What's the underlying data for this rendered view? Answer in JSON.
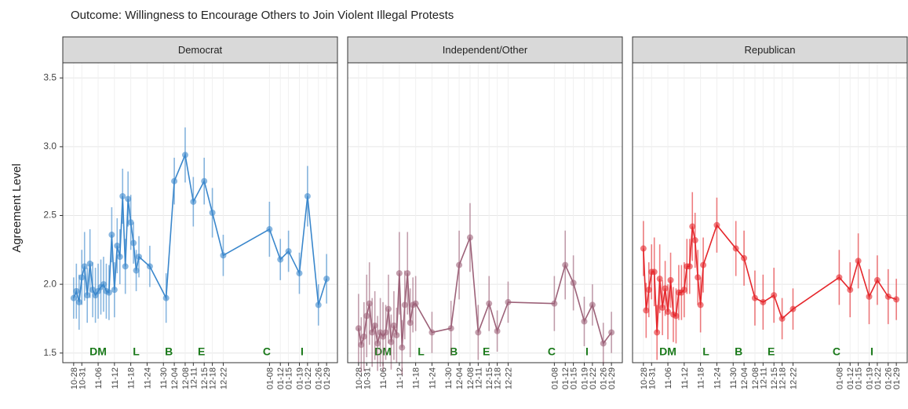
{
  "title": "Outcome: Willingness to Encourage Others to Join Violent Illegal Protests",
  "ylabel": "Agreement Level",
  "chart_data": [
    {
      "type": "line",
      "title": "Democrat",
      "color": "#3a87cc",
      "xlim": [
        "10-24",
        "02-02"
      ],
      "ylim": [
        1.43,
        3.61
      ],
      "yticks": [
        {
          "value": 1.5,
          "label": "1.5"
        },
        {
          "value": 2,
          "label": "2.0"
        },
        {
          "value": 2.5,
          "label": "2.5"
        },
        {
          "value": 3,
          "label": "3.0"
        },
        {
          "value": 3.5,
          "label": "3.5"
        }
      ],
      "xticks": [
        "10-28",
        "10-31",
        "11-06",
        "11-12",
        "11-18",
        "11-24",
        "11-30",
        "12-04",
        "12-08",
        "12-11",
        "12-15",
        "12-18",
        "12-22",
        "01-08",
        "01-12",
        "01-15",
        "01-19",
        "01-22",
        "01-26",
        "01-29"
      ],
      "grid": true,
      "annotations": [
        {
          "x": "11-06",
          "label": "DM"
        },
        {
          "x": "11-20",
          "label": "L"
        },
        {
          "x": "12-02",
          "label": "B"
        },
        {
          "x": "12-14",
          "label": "E"
        },
        {
          "x": "01-07",
          "label": "C"
        },
        {
          "x": "01-20",
          "label": "I"
        }
      ],
      "x": [
        "10-28",
        "10-29",
        "10-30",
        "10-31",
        "11-01",
        "11-02",
        "11-03",
        "11-04",
        "11-05",
        "11-06",
        "11-07",
        "11-08",
        "11-09",
        "11-10",
        "11-11",
        "11-12",
        "11-13",
        "11-14",
        "11-15",
        "11-16",
        "11-17",
        "11-18",
        "11-19",
        "11-20",
        "11-21",
        "11-25",
        "12-01",
        "12-04",
        "12-08",
        "12-11",
        "12-15",
        "12-18",
        "12-22",
        "01-08",
        "01-12",
        "01-15",
        "01-19",
        "01-22",
        "01-26",
        "01-29"
      ],
      "values": [
        1.9,
        1.95,
        1.87,
        2.05,
        2.13,
        1.92,
        2.15,
        1.96,
        1.92,
        1.95,
        1.98,
        2.0,
        1.95,
        1.94,
        2.36,
        1.96,
        2.28,
        2.2,
        2.64,
        2.13,
        2.62,
        2.45,
        2.3,
        2.1,
        2.2,
        2.13,
        1.9,
        2.75,
        2.94,
        2.6,
        2.75,
        2.52,
        2.21,
        2.4,
        2.18,
        2.24,
        2.08,
        2.64,
        1.85,
        2.04
      ],
      "errors": [
        0.15,
        0.2,
        0.2,
        0.2,
        0.25,
        0.2,
        0.25,
        0.2,
        0.2,
        0.2,
        0.2,
        0.2,
        0.2,
        0.2,
        0.2,
        0.2,
        0.2,
        0.2,
        0.2,
        0.2,
        0.2,
        0.2,
        0.15,
        0.15,
        0.15,
        0.15,
        0.18,
        0.17,
        0.2,
        0.18,
        0.17,
        0.18,
        0.15,
        0.2,
        0.15,
        0.15,
        0.15,
        0.22,
        0.15,
        0.18
      ]
    },
    {
      "type": "line",
      "title": "Independent/Other",
      "color": "#9c6178",
      "xlim": [
        "10-24",
        "02-02"
      ],
      "ylim": [
        1.43,
        3.61
      ],
      "yticks": [
        {
          "value": 1.5,
          "label": "1.5"
        },
        {
          "value": 2,
          "label": "2.0"
        },
        {
          "value": 2.5,
          "label": "2.5"
        },
        {
          "value": 3,
          "label": "3.0"
        },
        {
          "value": 3.5,
          "label": "3.5"
        }
      ],
      "xticks": [
        "10-28",
        "10-31",
        "11-06",
        "11-12",
        "11-18",
        "11-24",
        "11-30",
        "12-04",
        "12-08",
        "12-11",
        "12-15",
        "12-18",
        "12-22",
        "01-08",
        "01-12",
        "01-15",
        "01-19",
        "01-22",
        "01-26",
        "01-29"
      ],
      "grid": true,
      "annotations": [
        {
          "x": "11-06",
          "label": "DM"
        },
        {
          "x": "11-20",
          "label": "L"
        },
        {
          "x": "12-02",
          "label": "B"
        },
        {
          "x": "12-14",
          "label": "E"
        },
        {
          "x": "01-07",
          "label": "C"
        },
        {
          "x": "01-20",
          "label": "I"
        }
      ],
      "x": [
        "10-28",
        "10-29",
        "10-30",
        "10-31",
        "11-01",
        "11-02",
        "11-03",
        "11-04",
        "11-05",
        "11-06",
        "11-07",
        "11-08",
        "11-09",
        "11-10",
        "11-11",
        "11-12",
        "11-13",
        "11-14",
        "11-15",
        "11-16",
        "11-17",
        "11-18",
        "11-24",
        "12-01",
        "12-04",
        "12-08",
        "12-11",
        "12-15",
        "12-18",
        "12-22",
        "01-08",
        "01-12",
        "01-15",
        "01-19",
        "01-22",
        "01-26",
        "01-29"
      ],
      "values": [
        1.68,
        1.56,
        1.62,
        1.77,
        1.86,
        1.65,
        1.7,
        1.57,
        1.65,
        1.62,
        1.65,
        1.82,
        1.58,
        1.7,
        1.63,
        2.08,
        1.54,
        1.85,
        2.08,
        1.72,
        1.85,
        1.86,
        1.65,
        1.68,
        2.14,
        2.34,
        1.65,
        1.86,
        1.66,
        1.87,
        1.86,
        2.14,
        2.01,
        1.73,
        1.85,
        1.57,
        1.65
      ],
      "errors": [
        0.25,
        0.2,
        0.25,
        0.3,
        0.3,
        0.25,
        0.25,
        0.2,
        0.25,
        0.25,
        0.2,
        0.25,
        0.2,
        0.25,
        0.2,
        0.3,
        0.2,
        0.25,
        0.3,
        0.25,
        0.2,
        0.2,
        0.15,
        0.2,
        0.25,
        0.25,
        0.2,
        0.2,
        0.15,
        0.15,
        0.2,
        0.25,
        0.2,
        0.18,
        0.15,
        0.15,
        0.15
      ]
    },
    {
      "type": "line",
      "title": "Republican",
      "color": "#e5262b",
      "xlim": [
        "10-24",
        "02-02"
      ],
      "ylim": [
        1.43,
        3.61
      ],
      "yticks": [
        {
          "value": 1.5,
          "label": "1.5"
        },
        {
          "value": 2,
          "label": "2.0"
        },
        {
          "value": 2.5,
          "label": "2.5"
        },
        {
          "value": 3,
          "label": "3.0"
        },
        {
          "value": 3.5,
          "label": "3.5"
        }
      ],
      "xticks": [
        "10-28",
        "10-31",
        "11-06",
        "11-12",
        "11-18",
        "11-24",
        "11-30",
        "12-04",
        "12-08",
        "12-11",
        "12-15",
        "12-18",
        "12-22",
        "01-08",
        "01-12",
        "01-15",
        "01-19",
        "01-22",
        "01-26",
        "01-29"
      ],
      "grid": true,
      "annotations": [
        {
          "x": "11-06",
          "label": "DM"
        },
        {
          "x": "11-20",
          "label": "L"
        },
        {
          "x": "12-02",
          "label": "B"
        },
        {
          "x": "12-14",
          "label": "E"
        },
        {
          "x": "01-07",
          "label": "C"
        },
        {
          "x": "01-20",
          "label": "I"
        }
      ],
      "x": [
        "10-28",
        "10-29",
        "10-30",
        "10-31",
        "11-01",
        "11-02",
        "11-03",
        "11-04",
        "11-05",
        "11-06",
        "11-07",
        "11-08",
        "11-09",
        "11-10",
        "11-11",
        "11-12",
        "11-13",
        "11-14",
        "11-15",
        "11-16",
        "11-17",
        "11-18",
        "11-19",
        "11-24",
        "12-01",
        "12-04",
        "12-08",
        "12-11",
        "12-15",
        "12-18",
        "12-22",
        "01-08",
        "01-12",
        "01-15",
        "01-19",
        "01-22",
        "01-26",
        "01-29"
      ],
      "values": [
        2.26,
        1.81,
        1.96,
        2.09,
        2.09,
        1.65,
        2.04,
        1.83,
        1.97,
        1.8,
        2.03,
        1.78,
        1.77,
        1.94,
        1.94,
        1.96,
        2.13,
        2.13,
        2.42,
        2.32,
        2.05,
        1.85,
        2.14,
        2.43,
        2.26,
        2.19,
        1.9,
        1.87,
        1.92,
        1.75,
        1.82,
        2.05,
        1.96,
        2.17,
        1.91,
        2.03,
        1.91,
        1.89
      ],
      "errors": [
        0.2,
        0.2,
        0.2,
        0.2,
        0.25,
        0.2,
        0.25,
        0.2,
        0.2,
        0.2,
        0.2,
        0.2,
        0.2,
        0.2,
        0.2,
        0.2,
        0.2,
        0.2,
        0.25,
        0.2,
        0.2,
        0.2,
        0.2,
        0.2,
        0.2,
        0.2,
        0.2,
        0.2,
        0.2,
        0.15,
        0.15,
        0.2,
        0.2,
        0.2,
        0.2,
        0.18,
        0.2,
        0.15
      ]
    }
  ]
}
